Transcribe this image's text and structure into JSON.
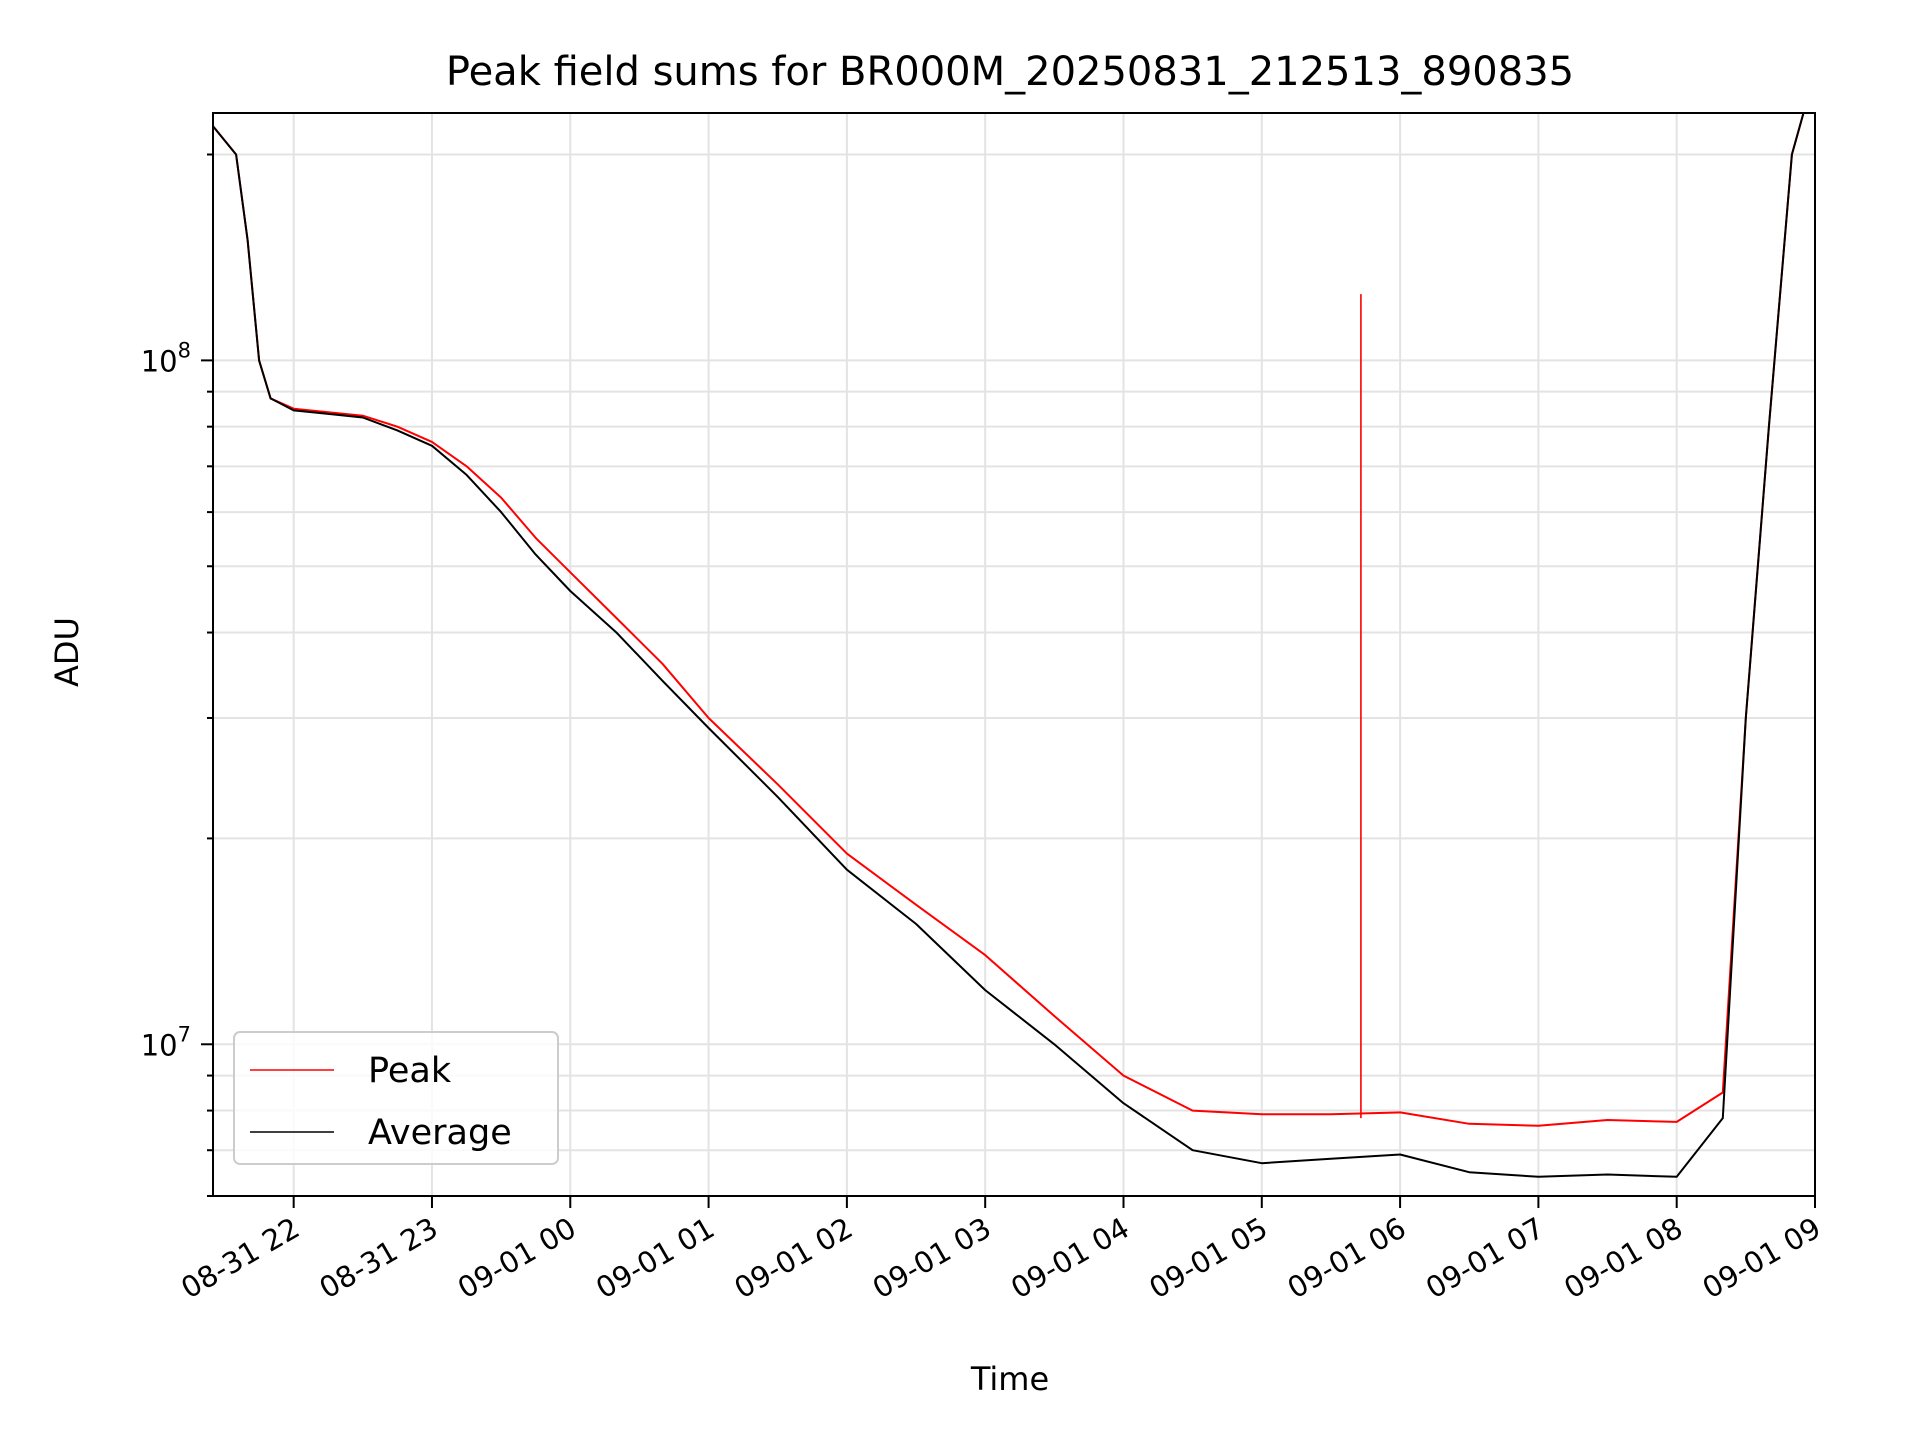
{
  "chart_data": {
    "type": "line",
    "title": "Peak field sums for BR000M_20250831_212513_890835",
    "xlabel": "Time",
    "ylabel": "ADU",
    "yscale": "log",
    "ylim": [
      6000000,
      230000000
    ],
    "xlim": [
      "2025-08-31 21:25",
      "2025-09-01 09:00"
    ],
    "grid": true,
    "legend_position": "lower-left",
    "x_ticks": [
      "08-31 22",
      "08-31 23",
      "09-01 00",
      "09-01 01",
      "09-01 02",
      "09-01 03",
      "09-01 04",
      "09-01 05",
      "09-01 06",
      "09-01 07",
      "09-01 08",
      "09-01 09"
    ],
    "y_ticks": [
      {
        "value": 10000000,
        "base": "10",
        "exp": "7"
      },
      {
        "value": 100000000,
        "base": "10",
        "exp": "8"
      }
    ],
    "series": [
      {
        "name": "Peak",
        "color": "#ff0000",
        "x": [
          "2025-08-31 21:25",
          "2025-08-31 21:35",
          "2025-08-31 21:40",
          "2025-08-31 21:45",
          "2025-08-31 21:50",
          "2025-08-31 22:00",
          "2025-08-31 22:15",
          "2025-08-31 22:30",
          "2025-08-31 22:45",
          "2025-08-31 23:00",
          "2025-08-31 23:15",
          "2025-08-31 23:30",
          "2025-08-31 23:45",
          "2025-09-01 00:00",
          "2025-09-01 00:20",
          "2025-09-01 00:40",
          "2025-09-01 01:00",
          "2025-09-01 01:30",
          "2025-09-01 02:00",
          "2025-09-01 02:30",
          "2025-09-01 03:00",
          "2025-09-01 03:30",
          "2025-09-01 04:00",
          "2025-09-01 04:30",
          "2025-09-01 05:00",
          "2025-09-01 05:30",
          "2025-09-01 06:00",
          "2025-09-01 06:30",
          "2025-09-01 07:00",
          "2025-09-01 07:30",
          "2025-09-01 08:00",
          "2025-09-01 08:20",
          "2025-09-01 08:30",
          "2025-09-01 08:40",
          "2025-09-01 08:50",
          "2025-09-01 08:55"
        ],
        "y": [
          220000000,
          200000000,
          150000000,
          100000000,
          88000000,
          85000000,
          84000000,
          83000000,
          80000000,
          76000000,
          70000000,
          63000000,
          55000000,
          49000000,
          42000000,
          36000000,
          30000000,
          24000000,
          19000000,
          16000000,
          13500000,
          11000000,
          9000000,
          8000000,
          7900000,
          7900000,
          7950000,
          7650000,
          7600000,
          7750000,
          7700000,
          8500000,
          30000000,
          80000000,
          200000000,
          230000000
        ]
      },
      {
        "name": "Average",
        "color": "#000000",
        "x": [
          "2025-08-31 21:25",
          "2025-08-31 21:35",
          "2025-08-31 21:40",
          "2025-08-31 21:45",
          "2025-08-31 21:50",
          "2025-08-31 22:00",
          "2025-08-31 22:15",
          "2025-08-31 22:30",
          "2025-08-31 22:45",
          "2025-08-31 23:00",
          "2025-08-31 23:15",
          "2025-08-31 23:30",
          "2025-08-31 23:45",
          "2025-09-01 00:00",
          "2025-09-01 00:20",
          "2025-09-01 00:40",
          "2025-09-01 01:00",
          "2025-09-01 01:30",
          "2025-09-01 02:00",
          "2025-09-01 02:30",
          "2025-09-01 03:00",
          "2025-09-01 03:30",
          "2025-09-01 04:00",
          "2025-09-01 04:30",
          "2025-09-01 05:00",
          "2025-09-01 05:30",
          "2025-09-01 06:00",
          "2025-09-01 06:30",
          "2025-09-01 07:00",
          "2025-09-01 07:30",
          "2025-09-01 08:00",
          "2025-09-01 08:20",
          "2025-09-01 08:30",
          "2025-09-01 08:40",
          "2025-09-01 08:50",
          "2025-09-01 08:55"
        ],
        "y": [
          220000000,
          200000000,
          150000000,
          100000000,
          88000000,
          84500000,
          83500000,
          82500000,
          79000000,
          75000000,
          68000000,
          60000000,
          52000000,
          46000000,
          40000000,
          34000000,
          29000000,
          23000000,
          18000000,
          15000000,
          12000000,
          10000000,
          8200000,
          7000000,
          6700000,
          6800000,
          6900000,
          6500000,
          6400000,
          6450000,
          6400000,
          7800000,
          30000000,
          80000000,
          200000000,
          230000000
        ]
      }
    ],
    "spike": {
      "series": "Peak",
      "x": "2025-09-01 05:43",
      "y": 125000000
    }
  }
}
